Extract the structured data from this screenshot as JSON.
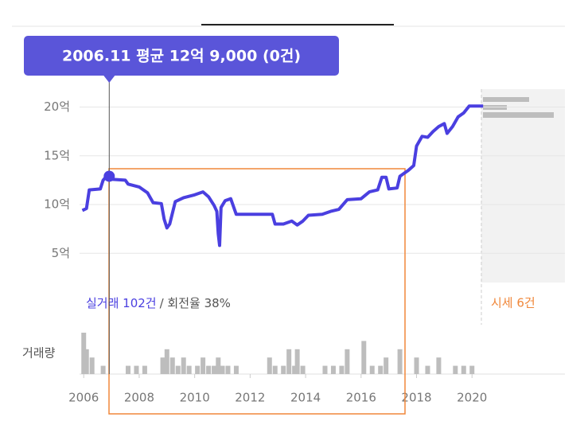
{
  "chart_data": {
    "type": "line",
    "tooltip": "2006.11 평균 12억 9,000 (0건)",
    "highlight": {
      "x": 2006.92,
      "value": 12.9
    },
    "xlim": [
      2005.85,
      2023.35
    ],
    "xticks": [
      2006,
      2008,
      2010,
      2012,
      2014,
      2016,
      2018,
      2020
    ],
    "ylim": [
      2,
      22
    ],
    "yticks": [
      {
        "value": 20,
        "label": "20억"
      },
      {
        "value": 15,
        "label": "15억"
      },
      {
        "value": 10,
        "label": "10억"
      },
      {
        "value": 5,
        "label": "5억"
      }
    ],
    "grid": true,
    "x": [
      2005.95,
      2006.1,
      2006.2,
      2006.6,
      2006.7,
      2006.85,
      2007.0,
      2007.5,
      2007.6,
      2008.0,
      2008.3,
      2008.5,
      2008.8,
      2008.9,
      2009.0,
      2009.1,
      2009.3,
      2009.6,
      2010.0,
      2010.3,
      2010.5,
      2010.7,
      2010.8,
      2010.85,
      2010.9,
      2010.95,
      2011.1,
      2011.3,
      2011.5,
      2012.0,
      2012.5,
      2012.8,
      2012.9,
      2013.2,
      2013.5,
      2013.7,
      2013.9,
      2014.1,
      2014.6,
      2014.9,
      2015.2,
      2015.5,
      2016.0,
      2016.3,
      2016.6,
      2016.75,
      2016.9,
      2017.0,
      2017.3,
      2017.4,
      2017.7,
      2017.9,
      2018.0,
      2018.2,
      2018.4,
      2018.6,
      2018.8,
      2019.0,
      2019.1,
      2019.3,
      2019.5,
      2019.7,
      2019.9,
      2020.4
    ],
    "series": [
      {
        "color": "#4a3fe0",
        "values": [
          9.4,
          9.6,
          11.5,
          11.6,
          12.5,
          13.0,
          12.6,
          12.5,
          12.1,
          11.8,
          11.2,
          10.2,
          10.1,
          8.5,
          7.6,
          8.0,
          10.3,
          10.7,
          11.0,
          11.3,
          10.8,
          9.9,
          9.3,
          7.0,
          5.8,
          9.7,
          10.4,
          10.6,
          9.0,
          9.0,
          9.0,
          9.0,
          8.0,
          8.0,
          8.3,
          7.9,
          8.3,
          8.9,
          9.0,
          9.3,
          9.5,
          10.5,
          10.6,
          11.3,
          11.5,
          12.8,
          12.8,
          11.6,
          11.7,
          12.9,
          13.5,
          14.0,
          16.0,
          17.0,
          16.9,
          17.5,
          18.0,
          18.3,
          17.3,
          18.0,
          19.0,
          19.4,
          20.1,
          20.1
        ]
      }
    ],
    "volume": {
      "color": "#bdbdbd",
      "ylim": [
        0,
        5
      ],
      "x": [
        2006.0,
        2006.1,
        2006.3,
        2006.7,
        2007.6,
        2007.9,
        2008.2,
        2008.85,
        2009.0,
        2009.2,
        2009.4,
        2009.6,
        2009.8,
        2010.1,
        2010.3,
        2010.5,
        2010.7,
        2010.85,
        2011.0,
        2011.2,
        2011.5,
        2012.7,
        2012.9,
        2013.2,
        2013.4,
        2013.6,
        2013.7,
        2013.9,
        2014.7,
        2015.0,
        2015.3,
        2015.5,
        2016.1,
        2016.4,
        2016.7,
        2016.9,
        2017.4,
        2018.0,
        2018.4,
        2018.8,
        2019.4,
        2019.7,
        2020.0
      ],
      "values": [
        5,
        3,
        2,
        1,
        1,
        1,
        1,
        2,
        3,
        2,
        1,
        2,
        1,
        1,
        2,
        1,
        1,
        2,
        1,
        1,
        1,
        2,
        1,
        1,
        3,
        1,
        3,
        1,
        1,
        1,
        1,
        3,
        4,
        1,
        1,
        2,
        3,
        2,
        1,
        2,
        1,
        1,
        1
      ]
    },
    "trade_label": "실거래 102건",
    "turnover_label": "/ 회전율 38%",
    "listing_label": "시세 6건",
    "volume_label": "거래량"
  }
}
